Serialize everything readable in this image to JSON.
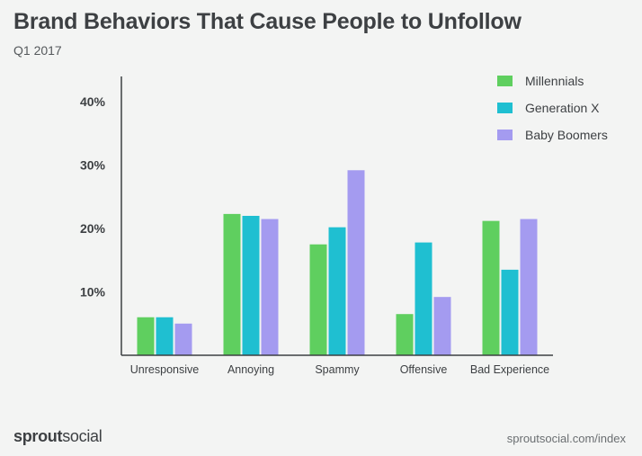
{
  "header": {
    "title": "Brand Behaviors That Cause People to Unfollow",
    "subtitle": "Q1 2017"
  },
  "footer": {
    "brand_bold": "sprout",
    "brand_light": "social",
    "source": "sproutsocial.com/index"
  },
  "chart_data": {
    "type": "bar",
    "title": "Brand Behaviors That Cause People to Unfollow",
    "subtitle": "Q1 2017",
    "categories": [
      "Unresponsive",
      "Annoying",
      "Spammy",
      "Offensive",
      "Bad Experience"
    ],
    "series": [
      {
        "name": "Millennials",
        "color": "#5fcf5f",
        "values": [
          6,
          22.3,
          17.5,
          6.5,
          21.2
        ]
      },
      {
        "name": "Generation X",
        "color": "#1fbfd1",
        "values": [
          6,
          22,
          20.2,
          17.8,
          13.5
        ]
      },
      {
        "name": "Baby Boomers",
        "color": "#a49bf0",
        "values": [
          5,
          21.5,
          29.2,
          9.2,
          21.5
        ]
      }
    ],
    "y_ticks": [
      {
        "value": 10,
        "label": "10%"
      },
      {
        "value": 20,
        "label": "20%"
      },
      {
        "value": 30,
        "label": "30%"
      },
      {
        "value": 40,
        "label": "40%"
      }
    ],
    "ylim": [
      0,
      44
    ],
    "grid": false,
    "legend_position": "top-right",
    "xlabel": "",
    "ylabel": ""
  }
}
